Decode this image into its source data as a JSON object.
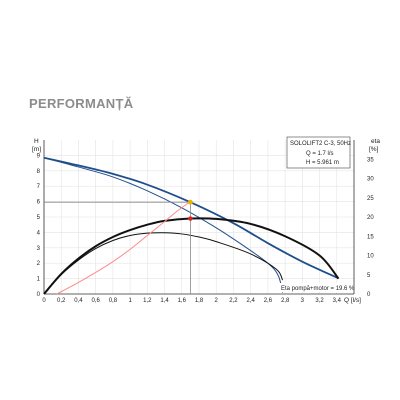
{
  "heading": "PERFORMANȚĂ",
  "chart_data": {
    "type": "line",
    "title": "",
    "xlabel": "Q [l/s]",
    "ylabel": "H [m]",
    "y2label": "eta [%]",
    "xlim": [
      0,
      3.6
    ],
    "ylim": [
      0,
      10
    ],
    "y2lim": [
      0,
      40
    ],
    "xticks": [
      "0",
      "0,2",
      "0,4",
      "0,6",
      "0,8",
      "1",
      "1,2",
      "1,4",
      "1,6",
      "1,8",
      "2",
      "2,2",
      "2,4",
      "2,6",
      "2,8",
      "3",
      "3,2",
      "3,4"
    ],
    "yticks": [
      "0",
      "1",
      "2",
      "3",
      "4",
      "5",
      "6",
      "7",
      "8",
      "9"
    ],
    "y2ticks": [
      "0",
      "5",
      "10",
      "15",
      "20",
      "25",
      "30",
      "35"
    ],
    "legend_box": {
      "lines": [
        "SOLOLIFT2 C-3, 50Hz",
        "Q = 1.7 l/s",
        "H = 5.961 m"
      ]
    },
    "eta_label": "Eta pompă+motor = 19.6 %",
    "operating_point": {
      "q": 1.7,
      "h": 5.961,
      "eta": 19.6,
      "h_color": "#e8b400",
      "eta_color": "#e02020"
    },
    "series": [
      {
        "axis": "left",
        "color": "#1f4e8c",
        "width": 1.8,
        "points": [
          [
            0,
            8.85
          ],
          [
            0.4,
            8.35
          ],
          [
            0.8,
            7.8
          ],
          [
            1.2,
            7.1
          ],
          [
            1.7,
            5.961
          ],
          [
            2.2,
            4.6
          ],
          [
            2.6,
            3.3
          ],
          [
            3.0,
            2.1
          ],
          [
            3.42,
            1.02
          ]
        ]
      },
      {
        "axis": "left",
        "color": "#1f4e8c",
        "width": 1.0,
        "points": [
          [
            0,
            8.85
          ],
          [
            0.4,
            8.25
          ],
          [
            0.8,
            7.6
          ],
          [
            1.2,
            6.7
          ],
          [
            1.6,
            5.6
          ],
          [
            2.0,
            4.3
          ],
          [
            2.3,
            3.2
          ],
          [
            2.6,
            2.0
          ],
          [
            2.72,
            1.2
          ],
          [
            2.77,
            0.1
          ]
        ]
      },
      {
        "axis": "right",
        "color": "#111111",
        "width": 2.0,
        "points": [
          [
            0,
            0
          ],
          [
            0.2,
            5.2
          ],
          [
            0.4,
            9.2
          ],
          [
            0.6,
            12.4
          ],
          [
            0.8,
            14.8
          ],
          [
            1.0,
            16.6
          ],
          [
            1.2,
            18.0
          ],
          [
            1.4,
            19.0
          ],
          [
            1.7,
            19.6
          ],
          [
            2.0,
            19.5
          ],
          [
            2.4,
            18.2
          ],
          [
            2.8,
            15.0
          ],
          [
            3.2,
            10.0
          ],
          [
            3.42,
            4.0
          ]
        ]
      },
      {
        "axis": "right",
        "color": "#111111",
        "width": 1.0,
        "points": [
          [
            0,
            0
          ],
          [
            0.2,
            5.0
          ],
          [
            0.4,
            8.8
          ],
          [
            0.6,
            11.8
          ],
          [
            0.8,
            13.9
          ],
          [
            1.0,
            15.2
          ],
          [
            1.2,
            15.8
          ],
          [
            1.4,
            15.9
          ],
          [
            1.6,
            15.6
          ],
          [
            1.8,
            14.8
          ],
          [
            2.0,
            13.6
          ],
          [
            2.4,
            10.4
          ],
          [
            2.7,
            6.4
          ],
          [
            2.77,
            3.6
          ]
        ]
      },
      {
        "axis": "right",
        "color": "#ff8a8a",
        "width": 1.0,
        "points": [
          [
            0.15,
            0
          ],
          [
            0.4,
            3.0
          ],
          [
            0.6,
            5.6
          ],
          [
            0.8,
            8.4
          ],
          [
            1.0,
            11.6
          ],
          [
            1.2,
            15.2
          ],
          [
            1.4,
            18.8
          ],
          [
            1.55,
            21.6
          ],
          [
            1.7,
            24.0
          ]
        ]
      }
    ]
  }
}
